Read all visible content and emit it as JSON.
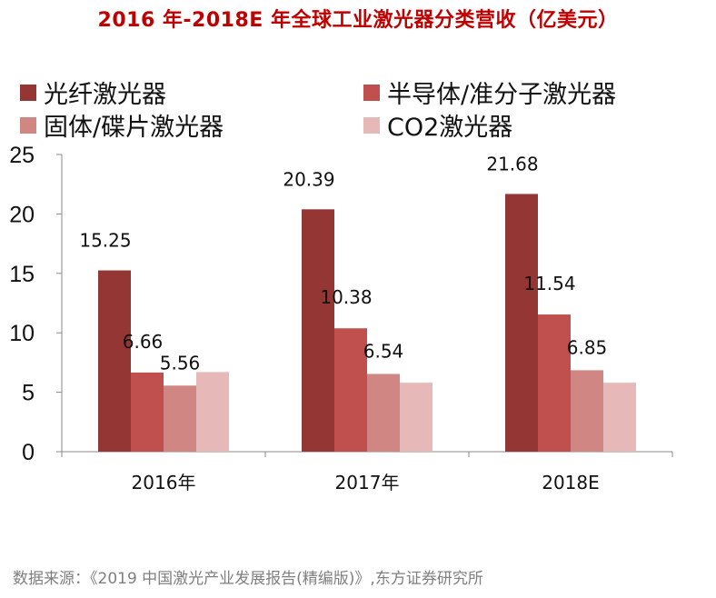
{
  "title": "2016 年-2018E 年全球工业激光器分类营收（亿美元）",
  "source": "数据来源：《2019 中国激光产业发展报告(精编版)》,东方证券研究所",
  "colors": [
    "#943634",
    "#c0504d",
    "#d08682",
    "#e6b9b8"
  ],
  "chart_data": {
    "type": "bar",
    "title": "2016 年-2018E 年全球工业激光器分类营收（亿美元）",
    "xlabel": "",
    "ylabel": "",
    "ylim": [
      0,
      25
    ],
    "yticks": [
      "0",
      "5",
      "10",
      "15",
      "20",
      "25"
    ],
    "categories": [
      "2016年",
      "2017年",
      "2018E"
    ],
    "series": [
      {
        "name": "光纤激光器",
        "values": [
          15.25,
          20.39,
          21.68
        ],
        "labels": [
          "15.25",
          "20.39",
          "21.68"
        ]
      },
      {
        "name": "半导体/准分子激光器",
        "values": [
          6.66,
          10.38,
          11.54
        ],
        "labels": [
          "6.66",
          "10.38",
          "11.54"
        ]
      },
      {
        "name": "固体/碟片激光器",
        "values": [
          5.56,
          6.54,
          6.85
        ],
        "labels": [
          "5.56",
          "6.54",
          "6.85"
        ]
      },
      {
        "name": "CO2激光器",
        "values": [
          6.7,
          5.8,
          5.8
        ],
        "labels": [
          "",
          "",
          ""
        ]
      }
    ]
  }
}
